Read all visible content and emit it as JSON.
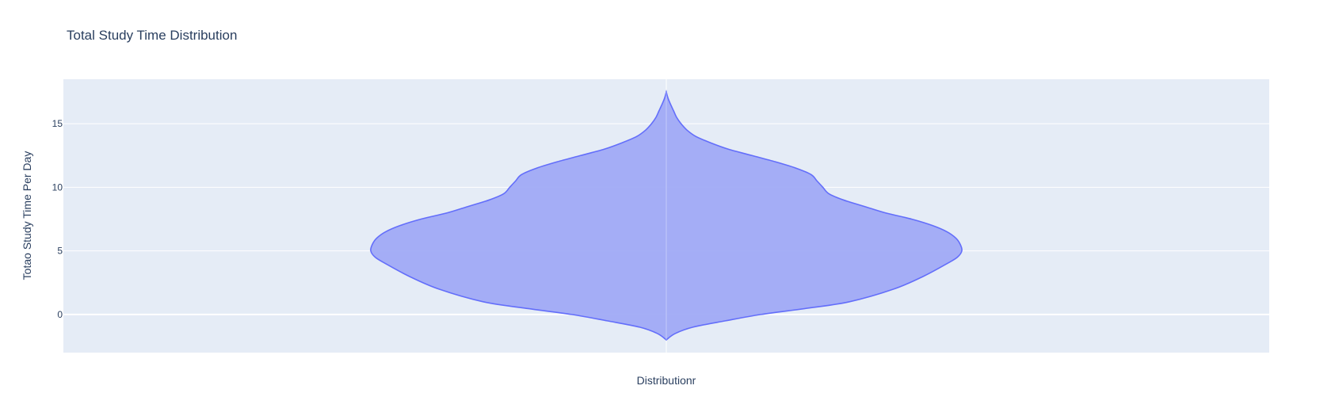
{
  "chart_data": {
    "type": "violin",
    "title": "Total Study Time Distribution",
    "xlabel": "Distributionr",
    "ylabel": "Totao Study Time Per Day",
    "ylim": [
      -3,
      18.5
    ],
    "yticks": [
      0,
      5,
      10,
      15
    ],
    "ytick_labels": [
      "0",
      "5",
      "10",
      "15"
    ],
    "grid": true,
    "colors": {
      "plot_background": "#e5ecf6",
      "gridline": "#ffffff",
      "violin_fill": "#a0aaf6",
      "violin_line": "#636efa",
      "text": "#2a3f5f"
    },
    "series": [
      {
        "name": "Distributionr",
        "range": [
          -2,
          17.5
        ],
        "density_profile": [
          {
            "y": -2.0,
            "w": 0.0
          },
          {
            "y": -1.5,
            "w": 0.03
          },
          {
            "y": -1.0,
            "w": 0.09
          },
          {
            "y": -0.5,
            "w": 0.2
          },
          {
            "y": 0.0,
            "w": 0.32
          },
          {
            "y": 0.5,
            "w": 0.48
          },
          {
            "y": 1.0,
            "w": 0.62
          },
          {
            "y": 2.0,
            "w": 0.77
          },
          {
            "y": 3.0,
            "w": 0.87
          },
          {
            "y": 4.0,
            "w": 0.95
          },
          {
            "y": 4.5,
            "w": 0.985
          },
          {
            "y": 5.0,
            "w": 1.0
          },
          {
            "y": 5.5,
            "w": 0.995
          },
          {
            "y": 6.0,
            "w": 0.98
          },
          {
            "y": 6.5,
            "w": 0.95
          },
          {
            "y": 7.0,
            "w": 0.9
          },
          {
            "y": 7.5,
            "w": 0.83
          },
          {
            "y": 8.0,
            "w": 0.74
          },
          {
            "y": 8.5,
            "w": 0.67
          },
          {
            "y": 9.0,
            "w": 0.6
          },
          {
            "y": 9.5,
            "w": 0.55
          },
          {
            "y": 10.0,
            "w": 0.53
          },
          {
            "y": 10.5,
            "w": 0.51
          },
          {
            "y": 11.0,
            "w": 0.49
          },
          {
            "y": 11.5,
            "w": 0.44
          },
          {
            "y": 12.0,
            "w": 0.37
          },
          {
            "y": 12.5,
            "w": 0.29
          },
          {
            "y": 13.0,
            "w": 0.21
          },
          {
            "y": 13.5,
            "w": 0.15
          },
          {
            "y": 14.0,
            "w": 0.1
          },
          {
            "y": 14.5,
            "w": 0.07
          },
          {
            "y": 15.0,
            "w": 0.05
          },
          {
            "y": 15.5,
            "w": 0.035
          },
          {
            "y": 16.0,
            "w": 0.025
          },
          {
            "y": 16.5,
            "w": 0.015
          },
          {
            "y": 17.0,
            "w": 0.006
          },
          {
            "y": 17.5,
            "w": 0.0
          }
        ]
      }
    ]
  }
}
